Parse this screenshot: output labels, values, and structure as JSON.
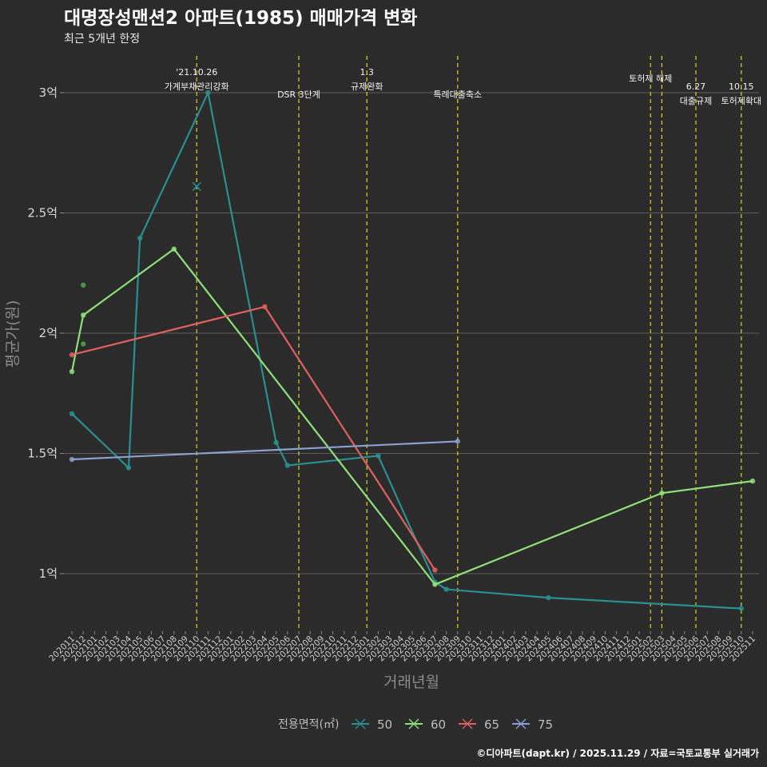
{
  "chart_data": {
    "type": "line",
    "title": "대명장성맨션2 아파트(1985) 매매가격 변화",
    "subtitle": "최근 5개년 한정",
    "xlabel": "거래년월",
    "ylabel": "평균가(원)",
    "caption": "©디아파트(dapt.kr) / 2025.11.29 / 자료=국토교통부 실거래가",
    "ylim": [
      0.78,
      3.12
    ],
    "yticks": [
      {
        "value": 1.0,
        "label": "1억"
      },
      {
        "value": 1.5,
        "label": "1.5억"
      },
      {
        "value": 2.0,
        "label": "2억"
      },
      {
        "value": 2.5,
        "label": "2.5억"
      },
      {
        "value": 3.0,
        "label": "3억"
      }
    ],
    "categories": [
      "202011",
      "202012",
      "202101",
      "202102",
      "202103",
      "202104",
      "202105",
      "202106",
      "202107",
      "202108",
      "202109",
      "202110",
      "202111",
      "202112",
      "202201",
      "202202",
      "202203",
      "202204",
      "202205",
      "202206",
      "202207",
      "202208",
      "202209",
      "202210",
      "202211",
      "202212",
      "202301",
      "202302",
      "202303",
      "202304",
      "202305",
      "202306",
      "202307",
      "202308",
      "202309",
      "202310",
      "202311",
      "202312",
      "202401",
      "202402",
      "202403",
      "202404",
      "202405",
      "202406",
      "202407",
      "202408",
      "202409",
      "202410",
      "202411",
      "202412",
      "202501",
      "202502",
      "202503",
      "202504",
      "202505",
      "202506",
      "202507",
      "202508",
      "202509",
      "202510",
      "202511"
    ],
    "legend": {
      "title": "전용면적(㎡)",
      "position": "bottom"
    },
    "series": [
      {
        "name": "50",
        "color": "#2a8f8f",
        "points": [
          [
            "202011",
            1.665
          ],
          [
            "202104",
            1.44
          ],
          [
            "202105",
            2.395
          ],
          [
            "202111",
            3.0
          ],
          [
            "202205",
            1.545
          ],
          [
            "202206",
            1.45
          ],
          [
            "202302",
            1.49
          ],
          [
            "202307",
            0.965
          ],
          [
            "202308",
            0.935
          ],
          [
            "202405",
            0.9
          ],
          [
            "202510",
            0.855
          ]
        ],
        "extra_points": [
          [
            "202110",
            2.61
          ]
        ]
      },
      {
        "name": "60",
        "color": "#90e07a",
        "points": [
          [
            "202011",
            1.84
          ],
          [
            "202012",
            2.075
          ],
          [
            "202108",
            2.35
          ],
          [
            "202307",
            0.955
          ],
          [
            "202503",
            1.335
          ],
          [
            "202511",
            1.385
          ]
        ],
        "extra_points": [
          [
            "202012",
            2.2
          ],
          [
            "202012",
            1.955
          ]
        ]
      },
      {
        "name": "65",
        "color": "#e06060",
        "points": [
          [
            "202011",
            1.91
          ],
          [
            "202204",
            2.11
          ],
          [
            "202307",
            1.015
          ]
        ],
        "extra_points": []
      },
      {
        "name": "75",
        "color": "#8aa0d0",
        "points": [
          [
            "202011",
            1.475
          ],
          [
            "202309",
            1.55
          ]
        ],
        "extra_points": []
      }
    ],
    "annotations": [
      {
        "x": "202110",
        "line1": "'21.10.26",
        "line2": "가계부채관리강화",
        "level": 1
      },
      {
        "x": "202207",
        "line1": "",
        "line2": "DSR 3단계",
        "level": 2
      },
      {
        "x": "202301",
        "line1": "1.3",
        "line2": "규제완화",
        "level": 1
      },
      {
        "x": "202309",
        "line1": "",
        "line2": "특례대출축소",
        "level": 2
      },
      {
        "x": "202502",
        "line1": "",
        "line2": "토허제 해제",
        "level": 0
      },
      {
        "x": "202503",
        "line1": "",
        "line2": "",
        "level": 0
      },
      {
        "x": "202506",
        "line1": "6.27",
        "line2": "대출규제",
        "level": 3
      },
      {
        "x": "202510",
        "line1": "10.15",
        "line2": "토허제확대",
        "level": 3
      }
    ]
  }
}
